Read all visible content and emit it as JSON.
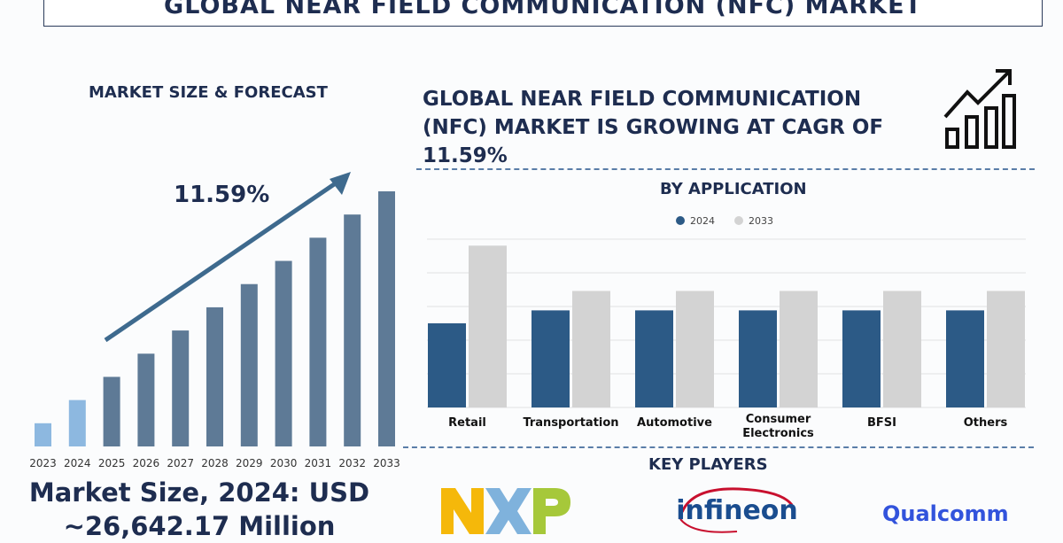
{
  "header": {
    "title": "GLOBAL NEAR FIELD COMMUNICATION (NFC) MARKET"
  },
  "left_panel": {
    "heading": "MARKET SIZE & FORECAST",
    "cagr_label": "11.59%",
    "market_size_line1": "Market Size, 2024: USD",
    "market_size_line2": "~26,642.17 Million"
  },
  "right_panel": {
    "growth_text": "GLOBAL NEAR FIELD COMMUNICATION (NFC) MARKET IS GROWING AT CAGR OF 11.59%",
    "growth_icon": "bar-chart-growth-arrow-icon",
    "application_heading": "BY APPLICATION",
    "key_players_heading": "KEY PLAYERS",
    "key_players": [
      {
        "name": "NXP",
        "icon": "nxp-logo",
        "colors": [
          "#f5b80a",
          "#7fb2dc",
          "#a6c83a"
        ]
      },
      {
        "name": "infineon",
        "icon": "infineon-logo",
        "color": "#1a4d8f",
        "accent": "#c8102e"
      },
      {
        "name": "Qualcomm",
        "icon": "qualcomm-logo",
        "color": "#3253dc"
      }
    ]
  },
  "colors": {
    "primary": "#1e2d50",
    "series_2024": "#2c5a86",
    "series_2033": "#d3d3d3",
    "forecast_bars": "#5e7a96",
    "historic_bars": "#8db8e0",
    "arrow": "#3e6a8e"
  },
  "chart_data": [
    {
      "type": "bar",
      "categories": [
        "2023",
        "2024",
        "2025",
        "2026",
        "2027",
        "2028",
        "2029",
        "2030",
        "2031",
        "2032",
        "2033"
      ],
      "values": [
        1,
        2,
        3,
        4,
        5,
        6,
        7,
        8,
        9,
        10,
        11
      ],
      "title": "",
      "xlabel": "",
      "ylabel": "",
      "annotation": "11.59%",
      "grid": false
    },
    {
      "type": "bar",
      "categories": [
        "Retail",
        "Transportation",
        "Automotive",
        "Consumer Electronics",
        "BFSI",
        "Others"
      ],
      "series": [
        {
          "name": "2024",
          "values": [
            2.6,
            3.0,
            3.0,
            3.0,
            3.0,
            3.0
          ]
        },
        {
          "name": "2033",
          "values": [
            5.0,
            3.6,
            3.6,
            3.6,
            3.6,
            3.6
          ]
        }
      ],
      "title": "BY APPLICATION",
      "ylim": [
        0,
        5.2
      ],
      "grid": true,
      "legend": "top-center"
    }
  ]
}
